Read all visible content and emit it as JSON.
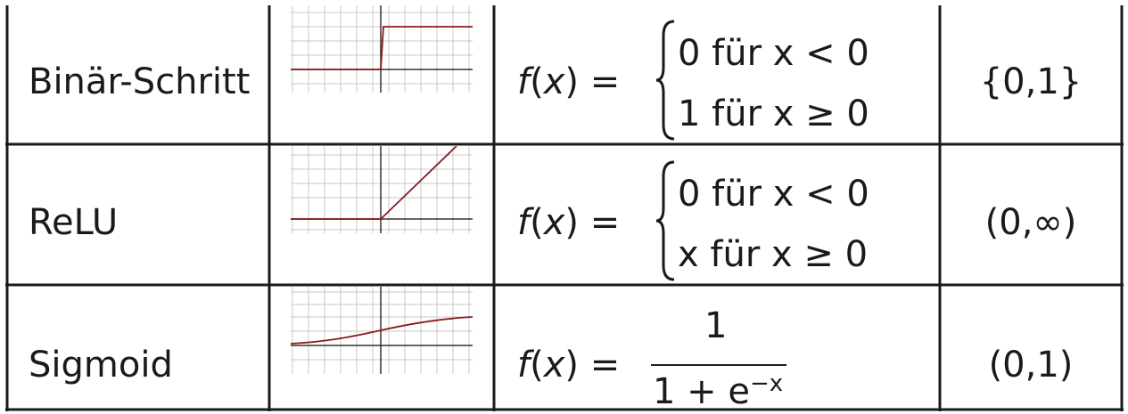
{
  "rows": [
    {
      "name": "Binär-Schritt",
      "formula": {
        "lhs": "f(x) =",
        "cases": [
          "0 für x < 0",
          "1 für x ≥ 0"
        ]
      },
      "range": "{0,1}",
      "plot": {
        "type": "step"
      }
    },
    {
      "name": "ReLU",
      "formula": {
        "lhs": "f(x) =",
        "cases": [
          "0 für x < 0",
          "x für x ≥ 0"
        ]
      },
      "range": "(0,∞)",
      "plot": {
        "type": "relu"
      }
    },
    {
      "name": "Sigmoid",
      "formula": {
        "lhs": "f(x) =",
        "numerator": "1",
        "denominator_base": "1 + e",
        "denominator_exp": "−x"
      },
      "range": "(0,1)",
      "plot": {
        "type": "sigmoid"
      }
    }
  ],
  "colors": {
    "grid": "#c8c8c8",
    "axis": "#333333",
    "curve": "#8b1a1a",
    "border": "#1a1a1a"
  }
}
